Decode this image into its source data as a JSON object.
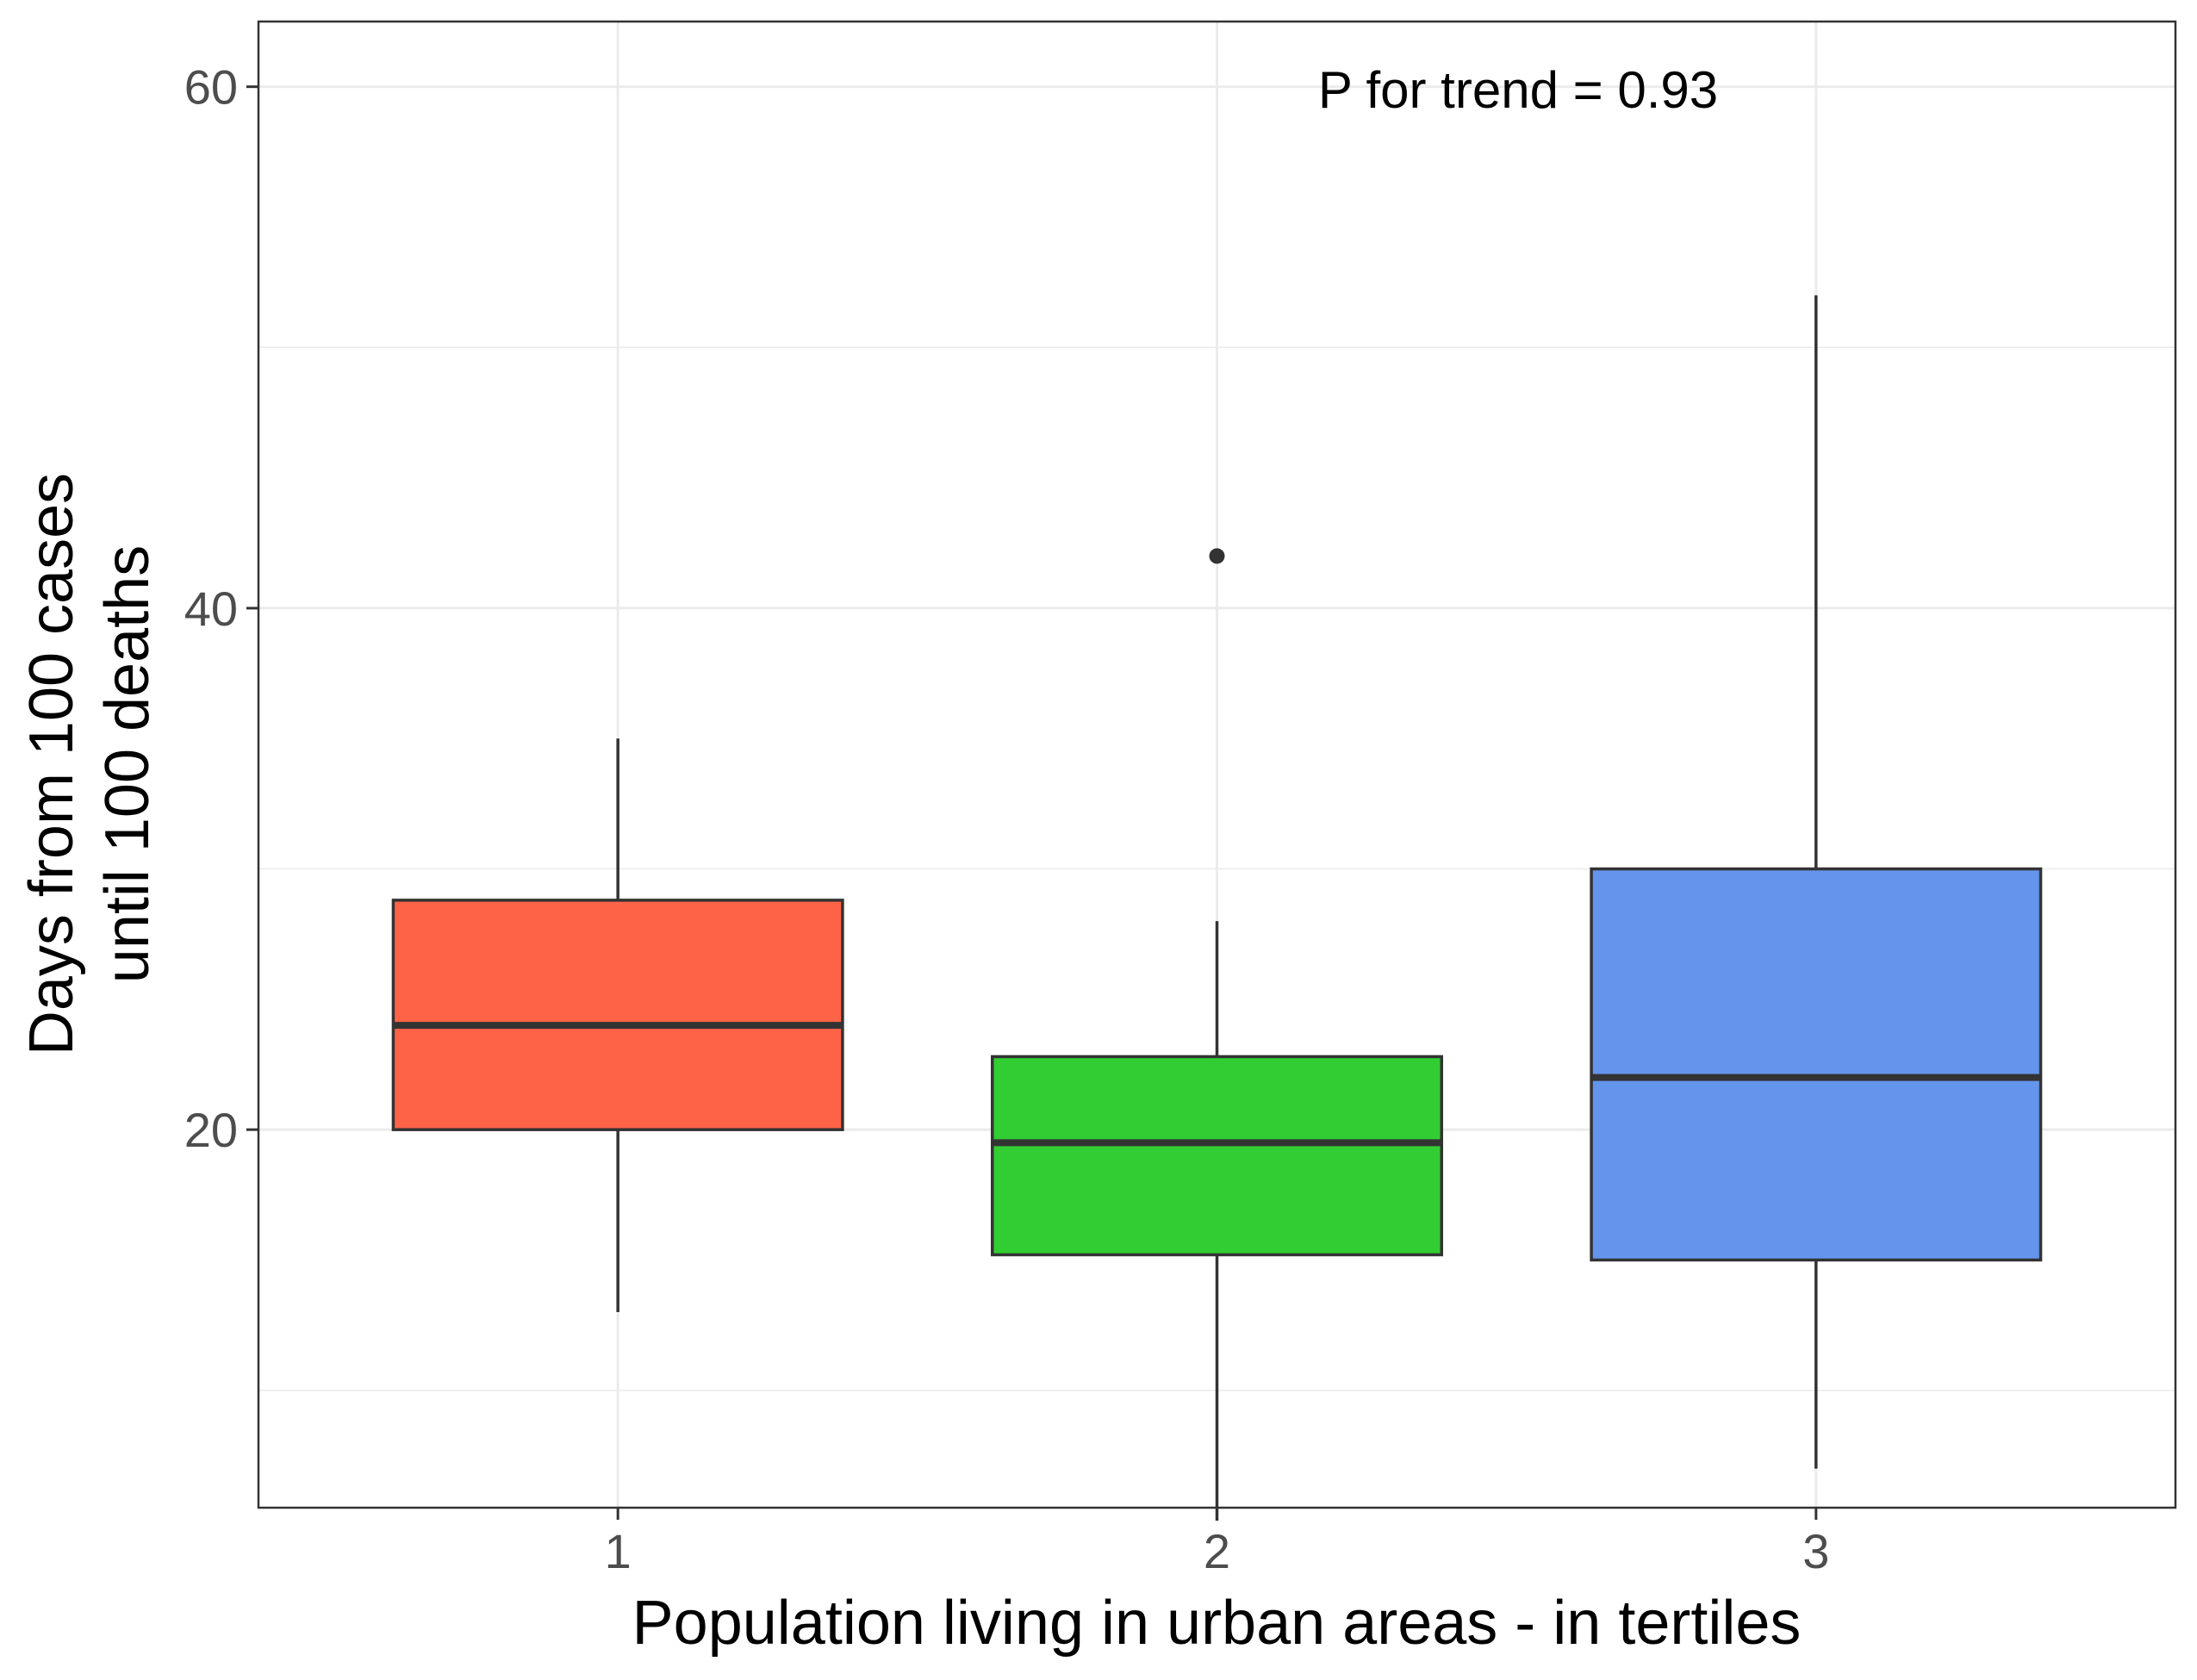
{
  "chart_data": {
    "type": "box",
    "xlabel": "Population living in urban areas - in tertiles",
    "ylabel_lines": [
      "Days from 100 cases",
      "until 100 deaths"
    ],
    "annotation": "P for trend = 0.93",
    "ylim": [
      5.5,
      62.5
    ],
    "y_ticks": [
      20,
      40,
      60
    ],
    "y_minor_ticks": [
      10,
      30,
      50
    ],
    "grid": true,
    "categories": [
      "1",
      "2",
      "3"
    ],
    "boxes": [
      {
        "category": "1",
        "whisker_low": 13,
        "q1": 20,
        "median": 24,
        "q3": 28.8,
        "whisker_high": 35,
        "outliers": [],
        "color": "#FF6347"
      },
      {
        "category": "2",
        "whisker_low": 5,
        "q1": 15.2,
        "median": 19.5,
        "q3": 22.8,
        "whisker_high": 28,
        "outliers": [
          42
        ],
        "color": "#32CD32"
      },
      {
        "category": "3",
        "whisker_low": 7,
        "q1": 15,
        "median": 22,
        "q3": 30,
        "whisker_high": 52,
        "outliers": [],
        "color": "#6495ED"
      }
    ]
  }
}
